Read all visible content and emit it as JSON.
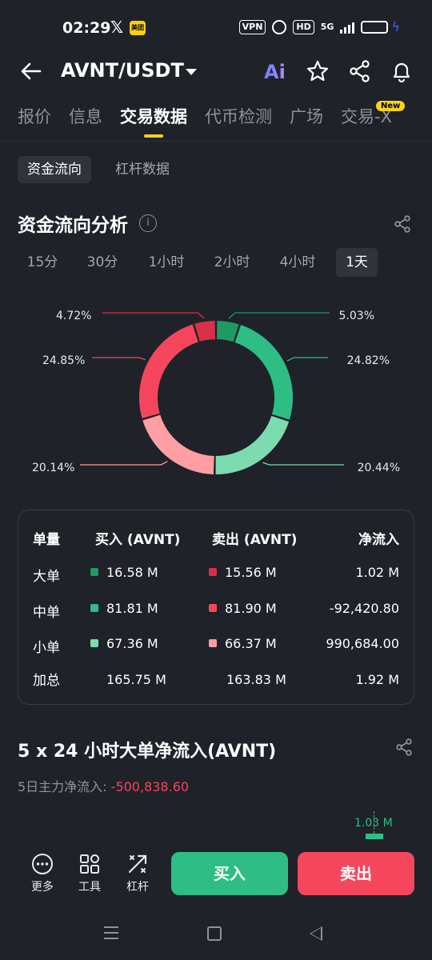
{
  "status_bar": {
    "time": "02:29",
    "x_app": "𝕏",
    "meituan": "美团",
    "vpn": "VPN",
    "hd": "HD",
    "signal": "5G",
    "battery_level": 0.85,
    "battery_color": "#3a6df0"
  },
  "header": {
    "pair": "AVNT/USDT",
    "ai_label": "Ai",
    "icons": [
      "back-arrow-icon",
      "star-icon",
      "share-icon",
      "bell-icon"
    ]
  },
  "tabs": [
    {
      "label": "报价"
    },
    {
      "label": "信息"
    },
    {
      "label": "交易数据"
    },
    {
      "label": "代币检测"
    },
    {
      "label": "广场"
    },
    {
      "label": "交易-X"
    }
  ],
  "new_badge": "New",
  "sub_tabs": [
    {
      "label": "资金流向"
    },
    {
      "label": "杠杆数据"
    }
  ],
  "analysis": {
    "title": "资金流向分析",
    "info_glyph": "i"
  },
  "timeframes": [
    {
      "label": "15分"
    },
    {
      "label": "30分"
    },
    {
      "label": "1小时"
    },
    {
      "label": "2小时"
    },
    {
      "label": "4小时"
    },
    {
      "label": "1天"
    }
  ],
  "donut": {
    "segments": [
      {
        "label": "5.03%",
        "value": 5.03,
        "color": "#1e9a64"
      },
      {
        "label": "24.82%",
        "value": 24.82,
        "color": "#2ebd85"
      },
      {
        "label": "20.44%",
        "value": 20.44,
        "color": "#7ddbb0"
      },
      {
        "label": "20.14%",
        "value": 20.14,
        "color": "#ff9ea3"
      },
      {
        "label": "24.85%",
        "value": 24.85,
        "color": "#f6465d"
      },
      {
        "label": "4.72%",
        "value": 4.72,
        "color": "#d9304a"
      }
    ]
  },
  "table": {
    "headers": {
      "size": "单量",
      "buy": "买入 (AVNT)",
      "sell": "卖出 (AVNT)",
      "net": "净流入"
    },
    "rows": [
      {
        "label": "大单",
        "buy": "16.58 M",
        "sell": "15.56 M",
        "net": "1.02 M",
        "buy_color": "#1e9a64",
        "sell_color": "#d9304a"
      },
      {
        "label": "中单",
        "buy": "81.81 M",
        "sell": "81.90 M",
        "net": "-92,420.80",
        "buy_color": "#2ebd85",
        "sell_color": "#f6465d"
      },
      {
        "label": "小单",
        "buy": "67.36 M",
        "sell": "66.37 M",
        "net": "990,684.00",
        "buy_color": "#7ddbb0",
        "sell_color": "#ff9ea3"
      }
    ],
    "total": {
      "label": "加总",
      "buy": "165.75 M",
      "sell": "163.83 M",
      "net": "1.92 M"
    }
  },
  "big_order": {
    "title": "5 x 24 小时大单净流入(AVNT)",
    "label": "5日主力净流入: ",
    "value": "-500,838.60",
    "bar_value": "1.03 M"
  },
  "bottom_bar": {
    "more": "更多",
    "tools": "工具",
    "leverage": "杠杆",
    "buy": "买入",
    "sell": "卖出"
  },
  "colors": {
    "up": "#2ebd85",
    "down": "#f6465d",
    "accent": "#f5d31c",
    "background": "#1f2228"
  }
}
